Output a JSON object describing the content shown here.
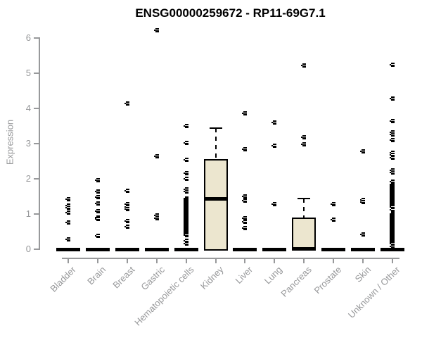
{
  "chart_data": {
    "type": "boxplot",
    "title": "ENSG00000259672 - RP11-69G7.1",
    "ylabel": "Expression",
    "xlabel": "",
    "ylim": [
      0,
      6
    ],
    "yticks": [
      0,
      1,
      2,
      3,
      4,
      5,
      6
    ],
    "grid": false,
    "legend": false,
    "colors": {
      "box_fill": "#ece6cf",
      "box_border": "#000000",
      "median": "#000000",
      "axis": "#98999b",
      "tick_label": "#97989a",
      "title": "#000000",
      "point": "#000000"
    },
    "categories": [
      {
        "label": "Bladder",
        "box": {
          "q1": 0,
          "median": 0,
          "q3": 0
        },
        "points": [
          1.43,
          1.24,
          1.18,
          1.05,
          0.77,
          0.29
        ]
      },
      {
        "label": "Brain",
        "box": {
          "q1": 0,
          "median": 0,
          "q3": 0
        },
        "points": [
          1.96,
          1.65,
          1.48,
          1.31,
          1.08,
          0.91,
          0.86,
          0.39
        ]
      },
      {
        "label": "Breast",
        "box": {
          "q1": 0,
          "median": 0,
          "q3": 0
        },
        "points": [
          4.14,
          1.67,
          1.28,
          1.2,
          1.15,
          0.81,
          0.65
        ]
      },
      {
        "label": "Gastric",
        "box": {
          "q1": 0,
          "median": 0,
          "q3": 0
        },
        "points": [
          6.23,
          2.65,
          0.97,
          0.89
        ]
      },
      {
        "label": "Hematopoietic cells",
        "box": {
          "q1": 0,
          "median": 0,
          "q3": 0
        },
        "points": [
          3.51,
          3.03,
          2.55,
          2.16,
          2.0,
          1.7,
          1.64,
          1.45,
          1.41,
          1.37,
          1.33,
          1.29,
          1.25,
          1.21,
          1.17,
          1.13,
          1.09,
          1.05,
          1.01,
          0.97,
          0.93,
          0.89,
          0.85,
          0.81,
          0.77,
          0.73,
          0.69,
          0.65,
          0.61,
          0.57,
          0.53,
          0.49,
          0.45,
          0.41,
          0.25,
          0.16
        ]
      },
      {
        "label": "Kidney",
        "box": {
          "q1": 0,
          "median": 1.45,
          "q3": 2.56,
          "whisker_high": 3.45
        },
        "points": []
      },
      {
        "label": "Liver",
        "box": {
          "q1": 0,
          "median": 0,
          "q3": 0
        },
        "points": [
          3.86,
          2.84,
          1.51,
          1.38,
          0.88,
          0.79,
          0.6
        ]
      },
      {
        "label": "Lung",
        "box": {
          "q1": 0,
          "median": 0,
          "q3": 0
        },
        "points": [
          3.6,
          2.94,
          1.29
        ]
      },
      {
        "label": "Pancreas",
        "box": {
          "q1": 0,
          "median": 0.02,
          "q3": 0.9,
          "whisker_high": 1.44
        },
        "points": [
          5.22,
          3.19,
          2.99
        ]
      },
      {
        "label": "Prostate",
        "box": {
          "q1": 0,
          "median": 0,
          "q3": 0
        },
        "points": [
          1.28,
          0.85
        ]
      },
      {
        "label": "Skin",
        "box": {
          "q1": 0,
          "median": 0,
          "q3": 0
        },
        "points": [
          2.78,
          1.41,
          1.34,
          0.43
        ]
      },
      {
        "label": "Unknown / Other",
        "box": {
          "q1": 0,
          "median": 0,
          "q3": 0
        },
        "points": [
          5.25,
          4.28,
          3.65,
          3.33,
          3.26,
          3.11,
          2.75,
          2.68,
          2.61,
          2.25,
          2.18,
          1.93,
          1.84,
          1.8,
          1.76,
          1.72,
          1.68,
          1.64,
          1.6,
          1.56,
          1.52,
          1.48,
          1.44,
          1.4,
          1.36,
          1.32,
          1.28,
          1.24,
          1.2,
          1.12,
          1.0,
          0.96,
          0.92,
          0.88,
          0.84,
          0.8,
          0.76,
          0.72,
          0.68,
          0.64,
          0.6,
          0.56,
          0.52,
          0.48,
          0.44,
          0.4,
          0.36,
          0.32,
          0.28,
          0.24,
          0.2,
          0.17,
          0.08
        ]
      }
    ]
  }
}
